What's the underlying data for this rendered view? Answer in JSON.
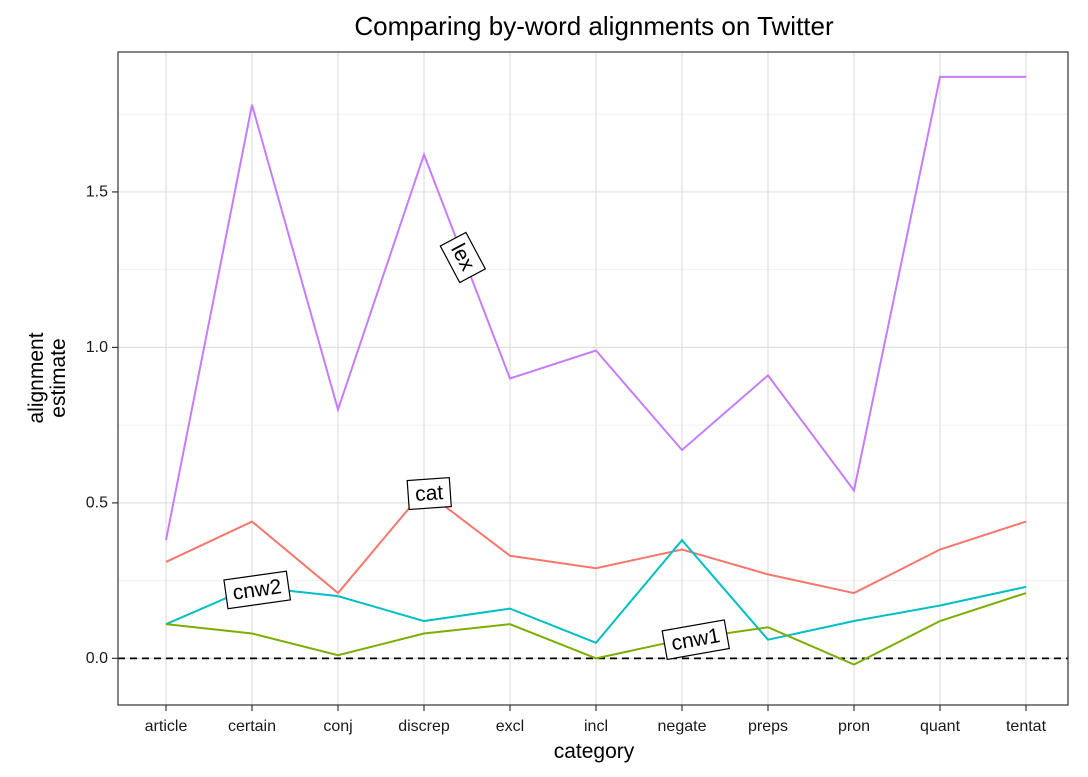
{
  "chart_data": {
    "type": "line",
    "title": "Comparing by-word alignments on Twitter",
    "xlabel": "category",
    "ylabel": "alignment\nestimate",
    "categories": [
      "article",
      "certain",
      "conj",
      "discrep",
      "excl",
      "incl",
      "negate",
      "preps",
      "pron",
      "quant",
      "tentat"
    ],
    "ylim": [
      -0.15,
      1.95
    ],
    "yticks": [
      0.0,
      0.5,
      1.0,
      1.5
    ],
    "ytick_labels": [
      "0.0",
      "0.5",
      "1.0",
      "1.5"
    ],
    "grid": true,
    "reference_line": {
      "y": 0,
      "style": "dashed",
      "color": "#000000"
    },
    "series": [
      {
        "name": "lex",
        "color": "#c77cff",
        "values": [
          0.38,
          1.78,
          0.8,
          1.62,
          0.9,
          0.99,
          0.67,
          0.91,
          0.54,
          1.87,
          1.87
        ]
      },
      {
        "name": "cat",
        "color": "#f8766d",
        "values": [
          0.31,
          0.44,
          0.21,
          0.54,
          0.33,
          0.29,
          0.35,
          0.27,
          0.21,
          0.35,
          0.44
        ]
      },
      {
        "name": "cnw2",
        "color": "#00bfc4",
        "values": [
          0.11,
          0.23,
          0.2,
          0.12,
          0.16,
          0.05,
          0.38,
          0.06,
          0.12,
          0.17,
          0.23
        ]
      },
      {
        "name": "cnw1",
        "color": "#7cae00",
        "values": [
          0.11,
          0.08,
          0.01,
          0.08,
          0.11,
          0.0,
          0.06,
          0.1,
          -0.02,
          0.12,
          0.21
        ]
      }
    ],
    "direct_labels": [
      {
        "series": "lex",
        "x": 3.45,
        "y": 1.29,
        "angle": 62
      },
      {
        "series": "cat",
        "x": 3.06,
        "y": 0.53,
        "angle": -4
      },
      {
        "series": "cnw2",
        "x": 1.06,
        "y": 0.22,
        "angle": -8
      },
      {
        "series": "cnw1",
        "x": 6.16,
        "y": 0.06,
        "angle": -10
      }
    ]
  }
}
